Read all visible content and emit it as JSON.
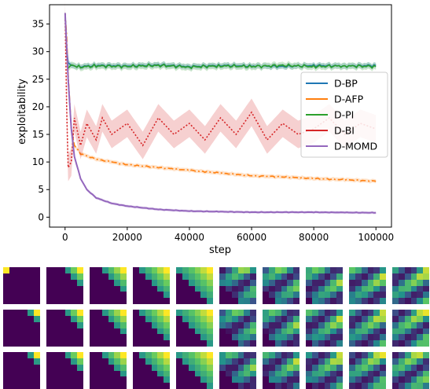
{
  "chart_data": {
    "type": "line",
    "xlabel": "step",
    "ylabel": "exploitability",
    "xlim": [
      -5000,
      105000
    ],
    "ylim": [
      -1.8,
      38.5
    ],
    "xticks": [
      0,
      20000,
      40000,
      60000,
      80000,
      100000
    ],
    "xtick_labels": [
      "0",
      "20000",
      "40000",
      "60000",
      "80000",
      "100000"
    ],
    "yticks": [
      0,
      5,
      10,
      15,
      20,
      25,
      30,
      35
    ],
    "ytick_labels": [
      "0",
      "5",
      "10",
      "15",
      "20",
      "25",
      "30",
      "35"
    ],
    "grid": false,
    "legend_position": "center-right",
    "series": [
      {
        "name": "D-BP",
        "color": "#1f77b4",
        "style": "solid",
        "x": [
          0,
          500,
          1000,
          2000,
          5000,
          10000,
          20000,
          30000,
          40000,
          50000,
          60000,
          70000,
          80000,
          90000,
          100000
        ],
        "y": [
          37,
          31,
          28,
          27.5,
          27.3,
          27.5,
          27.4,
          27.6,
          27.3,
          27.5,
          27.4,
          27.3,
          27.5,
          27.4,
          27.5
        ]
      },
      {
        "name": "D-AFP",
        "color": "#ff7f0e",
        "style": "dashdot",
        "x": [
          0,
          500,
          1000,
          2000,
          3000,
          5000,
          10000,
          15000,
          20000,
          30000,
          40000,
          50000,
          60000,
          70000,
          80000,
          90000,
          100000
        ],
        "y": [
          37,
          33,
          26,
          16,
          13,
          11.5,
          10.5,
          10,
          9.5,
          9,
          8.5,
          8,
          7.5,
          7.3,
          7,
          6.8,
          6.5
        ]
      },
      {
        "name": "D-PI",
        "color": "#2ca02c",
        "style": "solid",
        "x": [
          0,
          500,
          1000,
          2000,
          5000,
          10000,
          20000,
          30000,
          40000,
          50000,
          60000,
          70000,
          80000,
          90000,
          100000
        ],
        "y": [
          37,
          30,
          27,
          27.6,
          27.2,
          27.4,
          27.3,
          27.5,
          27.2,
          27.4,
          27.3,
          27.5,
          27.3,
          27.4,
          27.3
        ]
      },
      {
        "name": "D-BI",
        "color": "#d62728",
        "style": "dotted",
        "x": [
          0,
          500,
          1000,
          2000,
          3000,
          5000,
          7000,
          10000,
          12000,
          15000,
          20000,
          25000,
          30000,
          35000,
          40000,
          45000,
          50000,
          55000,
          60000,
          65000,
          70000,
          75000,
          80000,
          85000,
          90000,
          95000,
          100000
        ],
        "y": [
          37,
          20,
          9,
          10,
          18,
          13,
          17,
          14,
          18,
          15,
          17,
          13,
          18,
          15,
          17,
          14,
          18,
          15,
          19,
          14,
          17,
          15,
          16,
          18,
          15,
          17,
          16
        ]
      },
      {
        "name": "D-MOMD",
        "color": "#9467bd",
        "style": "solid",
        "x": [
          0,
          1000,
          2000,
          3000,
          5000,
          7000,
          10000,
          15000,
          20000,
          25000,
          30000,
          40000,
          50000,
          60000,
          70000,
          80000,
          90000,
          100000
        ],
        "y": [
          37,
          25,
          16,
          11,
          7,
          5,
          3.5,
          2.5,
          2,
          1.7,
          1.4,
          1.1,
          1,
          0.9,
          0.9,
          0.9,
          0.85,
          0.8
        ]
      }
    ]
  },
  "heatmap_panel": {
    "rows": 3,
    "columns": 10,
    "colormap": "viridis"
  }
}
